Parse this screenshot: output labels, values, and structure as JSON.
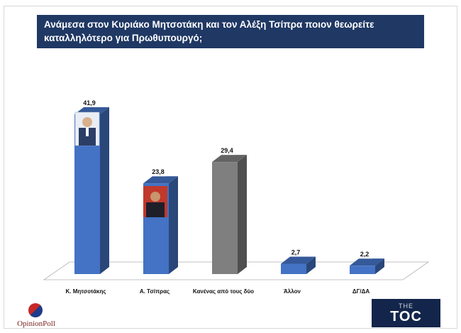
{
  "title": "Ανάμεσα στον Κυριάκο Μητσοτάκη και τον Αλέξη Τσίπρα ποιον θεωρείτε καταλληλότερο για Πρωθυπουργό;",
  "chart_data": {
    "type": "bar",
    "style": "3d",
    "categories": [
      "Κ. Μητσοτάκης",
      "Α. Τσίπρας",
      "Κανένας από τους δύο",
      "Άλλον",
      "ΔΓ/ΔΑ"
    ],
    "values": [
      41.9,
      23.8,
      29.4,
      2.7,
      2.2
    ],
    "value_labels": [
      "41,9",
      "23,8",
      "29,4",
      "2,7",
      "2,2"
    ],
    "bar_colors": [
      "#4472c4",
      "#4472c4",
      "#7f7f7f",
      "#4472c4",
      "#4472c4"
    ],
    "ylim": [
      0,
      45
    ],
    "grid": false,
    "legend": "none"
  },
  "logos": {
    "left": "OpinionPoll",
    "right_top": "THE",
    "right_main": "TOC"
  },
  "colors": {
    "title_bg": "#1f3864",
    "bar_blue": "#4472c4",
    "bar_gray": "#7f7f7f"
  }
}
